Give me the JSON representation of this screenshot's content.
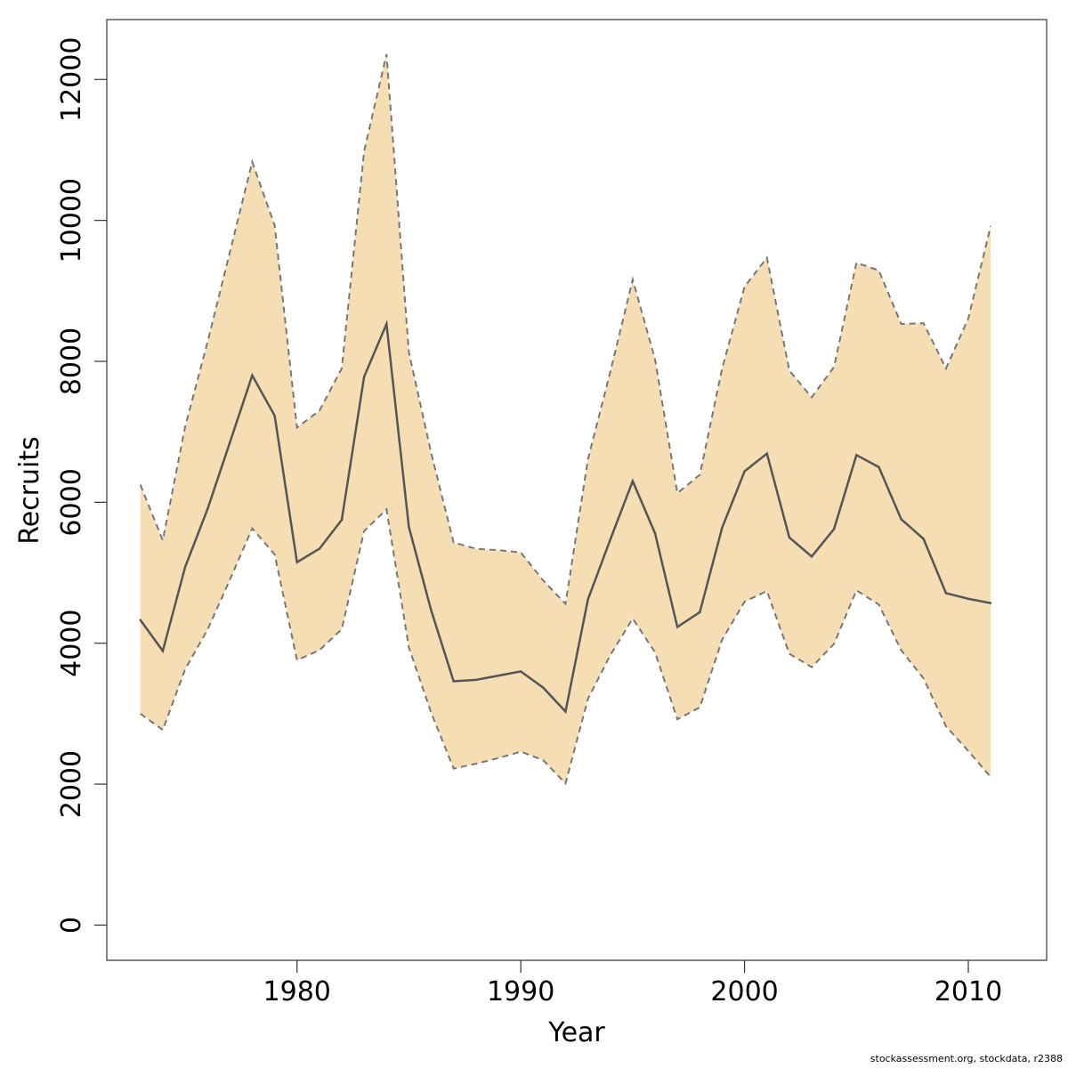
{
  "chart_data": {
    "type": "area",
    "xlabel": "Year",
    "ylabel": "Recruits",
    "xlim": [
      1971.5,
      2013.5
    ],
    "ylim": [
      -500,
      12850
    ],
    "x_ticks": [
      1980,
      1990,
      2000,
      2010
    ],
    "y_ticks": [
      0,
      2000,
      4000,
      6000,
      8000,
      10000,
      12000
    ],
    "x_tick_labels": [
      "1980",
      "1990",
      "2000",
      "2010"
    ],
    "y_tick_labels": [
      "0",
      "2000",
      "4000",
      "6000",
      "8000",
      "10000",
      "12000"
    ],
    "grid": false,
    "band_color": "#f5deb3",
    "line_color": "#555555",
    "bound_color": "#777777",
    "x": [
      1973,
      1974,
      1975,
      1976,
      1977,
      1978,
      1979,
      1980,
      1981,
      1982,
      1983,
      1984,
      1985,
      1986,
      1987,
      1988,
      1989,
      1990,
      1991,
      1992,
      1993,
      1994,
      1995,
      1996,
      1997,
      1998,
      1999,
      2000,
      2001,
      2002,
      2003,
      2004,
      2005,
      2006,
      2007,
      2008,
      2009,
      2010,
      2011
    ],
    "series": [
      {
        "values": [
          4330,
          3890,
          5080,
          5900,
          6850,
          7800,
          7230,
          5150,
          5340,
          5750,
          7780,
          8530,
          5650,
          4460,
          3460,
          3480,
          3540,
          3600,
          3370,
          3030,
          4620,
          5470,
          6300,
          5560,
          4230,
          4440,
          5640,
          6440,
          6690,
          5500,
          5230,
          5620,
          6670,
          6500,
          5760,
          5480,
          4710,
          4630,
          4570
        ]
      },
      {
        "values": [
          6250,
          5460,
          7070,
          8270,
          9550,
          10830,
          9930,
          7060,
          7300,
          7900,
          10980,
          12360,
          8130,
          6690,
          5430,
          5340,
          5320,
          5290,
          4890,
          4560,
          6610,
          7850,
          9160,
          8030,
          6130,
          6390,
          7900,
          9060,
          9470,
          7870,
          7490,
          7920,
          9400,
          9290,
          8530,
          8540,
          7900,
          8610,
          9920
        ]
      },
      {
        "values": [
          3000,
          2770,
          3630,
          4190,
          4900,
          5630,
          5260,
          3760,
          3900,
          4200,
          5590,
          5900,
          3940,
          3010,
          2220,
          2290,
          2370,
          2460,
          2340,
          2010,
          3210,
          3830,
          4350,
          3870,
          2920,
          3090,
          4050,
          4590,
          4740,
          3850,
          3660,
          3990,
          4750,
          4550,
          3900,
          3500,
          2820,
          2470,
          2100
        ]
      }
    ]
  },
  "credit": "stockassessment.org, stockdata, r2388"
}
